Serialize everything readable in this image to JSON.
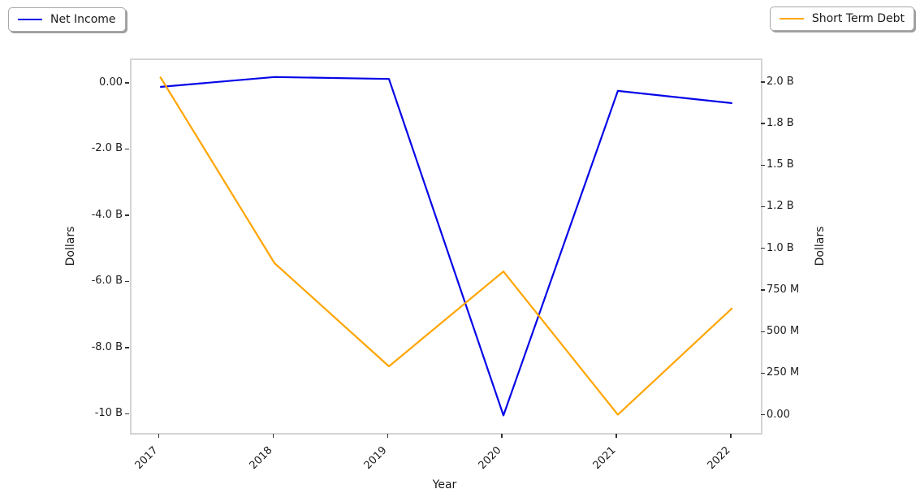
{
  "chart_data": {
    "type": "line",
    "x": [
      2017,
      2018,
      2019,
      2020,
      2021,
      2022
    ],
    "series": [
      {
        "name": "Net Income",
        "axis": "left",
        "color": "#0505e8",
        "values": [
          -0.08,
          0.22,
          0.16,
          -10.0,
          -0.2,
          -0.57
        ]
      },
      {
        "name": "Short Term Debt",
        "axis": "right",
        "color": "#ffa500",
        "values": [
          2.04,
          0.92,
          0.3,
          0.87,
          0.01,
          0.65
        ]
      }
    ],
    "units": "billions of dollars",
    "xlabel": "Year",
    "ylabel_left": "Dollars",
    "ylabel_right": "Dollars",
    "xlim": [
      2016.75,
      2022.25
    ],
    "ylim_left": [
      -10.53,
      0.73
    ],
    "ylim_right": [
      -0.1,
      2.14
    ],
    "grid": false,
    "xticks": [
      {
        "value": 2017,
        "label": "2017"
      },
      {
        "value": 2018,
        "label": "2018"
      },
      {
        "value": 2019,
        "label": "2019"
      },
      {
        "value": 2020,
        "label": "2020"
      },
      {
        "value": 2021,
        "label": "2021"
      },
      {
        "value": 2022,
        "label": "2022"
      }
    ],
    "yticks_left": [
      {
        "value": 0,
        "label": "0.00"
      },
      {
        "value": -2,
        "label": "-2.0 B"
      },
      {
        "value": -4,
        "label": "-4.0 B"
      },
      {
        "value": -6,
        "label": "-6.0 B"
      },
      {
        "value": -8,
        "label": "-8.0 B"
      },
      {
        "value": -10,
        "label": "-10 B"
      }
    ],
    "yticks_right": [
      {
        "value": 2.0,
        "label": "2.0 B"
      },
      {
        "value": 1.75,
        "label": "1.8 B"
      },
      {
        "value": 1.5,
        "label": "1.5 B"
      },
      {
        "value": 1.25,
        "label": "1.2 B"
      },
      {
        "value": 1.0,
        "label": "1.0 B"
      },
      {
        "value": 0.75,
        "label": "750 M"
      },
      {
        "value": 0.5,
        "label": "500 M"
      },
      {
        "value": 0.25,
        "label": "250 M"
      },
      {
        "value": 0,
        "label": "0.00"
      }
    ],
    "legend": [
      {
        "label": "Net Income",
        "series": 0,
        "position": "top-left"
      },
      {
        "label": "Short Term Debt",
        "series": 1,
        "position": "top-right"
      }
    ]
  }
}
